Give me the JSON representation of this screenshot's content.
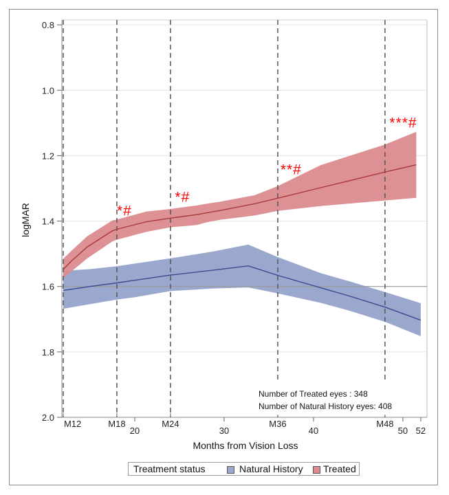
{
  "chart_data": {
    "type": "area",
    "title": "",
    "xlabel": "Months from Vision Loss",
    "ylabel": "logMAR",
    "xlim": [
      11.85,
      52.7
    ],
    "ylim": [
      0.785,
      2.0
    ],
    "y_axis_reversed": true,
    "grid": true,
    "yticks": [
      {
        "value": 0.8,
        "label": "0.8"
      },
      {
        "value": 1.0,
        "label": "1.0"
      },
      {
        "value": 1.2,
        "label": "1.2"
      },
      {
        "value": 1.4,
        "label": "1.4"
      },
      {
        "value": 1.6,
        "label": "1.6"
      },
      {
        "value": 1.8,
        "label": "1.8"
      },
      {
        "value": 2.0,
        "label": "2.0"
      }
    ],
    "xticks": [
      {
        "value": 20,
        "label": "20"
      },
      {
        "value": 30,
        "label": "30"
      },
      {
        "value": 40,
        "label": "40"
      },
      {
        "value": 50,
        "label": "50"
      },
      {
        "value": 52,
        "label": "52"
      }
    ],
    "vertical_reference_lines": [
      {
        "value": 12,
        "label": "M12"
      },
      {
        "value": 18,
        "label": "M18"
      },
      {
        "value": 24,
        "label": "M24"
      },
      {
        "value": 36,
        "label": "M36"
      },
      {
        "value": 48,
        "label": "M48"
      }
    ],
    "horizontal_reference_line": 1.6,
    "series": [
      {
        "name": "Natural History",
        "line_color": "#3b4a8c",
        "band_color": "#95a3cb",
        "x": [
          12,
          15,
          18,
          20,
          24,
          28.8,
          32.7,
          36,
          40.8,
          44,
          48,
          52
        ],
        "mean": [
          1.612,
          1.6,
          1.589,
          1.581,
          1.565,
          1.55,
          1.537,
          1.566,
          1.604,
          1.629,
          1.663,
          1.703
        ],
        "ci_lower": [
          1.552,
          1.547,
          1.538,
          1.53,
          1.514,
          1.493,
          1.472,
          1.51,
          1.559,
          1.584,
          1.617,
          1.651
        ],
        "ci_upper": [
          1.668,
          1.654,
          1.64,
          1.633,
          1.614,
          1.606,
          1.603,
          1.621,
          1.65,
          1.674,
          1.708,
          1.752
        ]
      },
      {
        "name": "Treated",
        "line_color": "#a8383a",
        "band_color": "#db8b8e",
        "x": [
          12,
          13,
          14.7,
          17.5,
          18,
          21.3,
          24,
          27,
          28,
          29.5,
          33.4,
          36,
          40.8,
          48,
          51.5
        ],
        "mean": [
          1.548,
          1.52,
          1.479,
          1.43,
          1.425,
          1.402,
          1.391,
          1.38,
          1.375,
          1.368,
          1.347,
          1.33,
          1.298,
          1.25,
          1.228
        ],
        "ci_lower": [
          1.515,
          1.489,
          1.446,
          1.398,
          1.395,
          1.371,
          1.363,
          1.352,
          1.347,
          1.341,
          1.321,
          1.293,
          1.229,
          1.166,
          1.127
        ],
        "ci_upper": [
          1.575,
          1.552,
          1.514,
          1.462,
          1.457,
          1.433,
          1.419,
          1.412,
          1.404,
          1.396,
          1.383,
          1.369,
          1.354,
          1.337,
          1.329
        ]
      }
    ],
    "annotations": [
      {
        "text": "*#",
        "month": 18.0,
        "logmar": 1.383
      },
      {
        "text": "*#",
        "month": 24.5,
        "logmar": 1.341
      },
      {
        "text": "**#",
        "month": 36.3,
        "logmar": 1.257
      },
      {
        "text": "***#",
        "month": 48.5,
        "logmar": 1.114
      }
    ],
    "sample_sizes": [
      "Number of Treated eyes : 348",
      "Number of Natural History eyes: 408"
    ],
    "legend": {
      "title": "Treatment status",
      "position": "bottom",
      "entries": [
        {
          "label": "Natural History",
          "color": "#9aa8d0"
        },
        {
          "label": "Treated",
          "color": "#e08a8e"
        }
      ]
    }
  }
}
